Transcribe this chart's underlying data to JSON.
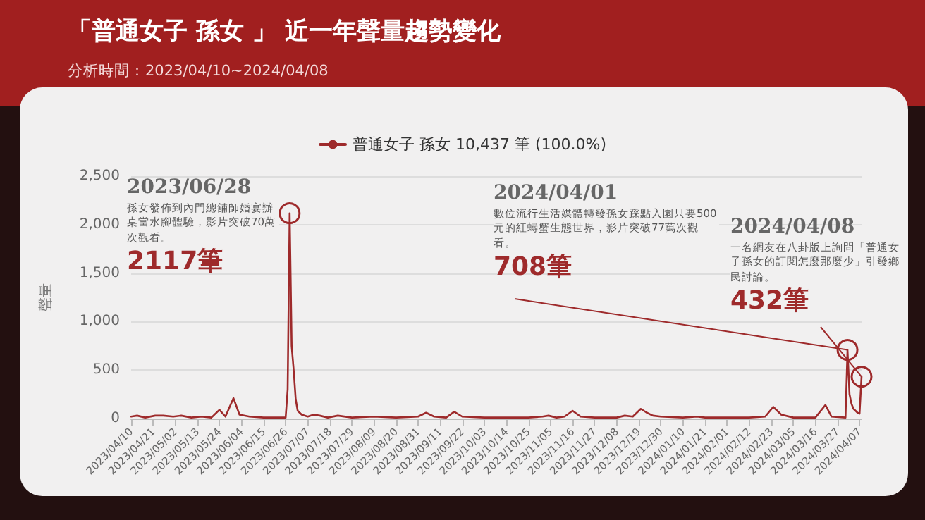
{
  "chart_data": {
    "type": "line",
    "title": "「普通女子 孫女 」 近一年聲量趨勢變化",
    "subtitle": "分析時間：2023/04/10~2024/04/08",
    "ylabel": "聲量",
    "x": [
      "2023-04-10",
      "2023-04-13",
      "2023-04-17",
      "2023-04-22",
      "2023-04-26",
      "2023-05-01",
      "2023-05-05",
      "2023-05-10",
      "2023-05-15",
      "2023-05-20",
      "2023-05-24",
      "2023-05-27",
      "2023-05-31",
      "2023-06-03",
      "2023-06-08",
      "2023-06-15",
      "2023-06-22",
      "2023-06-26",
      "2023-06-27",
      "2023-06-28",
      "2023-06-29",
      "2023-06-30",
      "2023-07-01",
      "2023-07-02",
      "2023-07-04",
      "2023-07-07",
      "2023-07-10",
      "2023-07-13",
      "2023-07-17",
      "2023-07-22",
      "2023-07-29",
      "2023-08-09",
      "2023-08-20",
      "2023-08-31",
      "2023-09-04",
      "2023-09-08",
      "2023-09-14",
      "2023-09-18",
      "2023-09-22",
      "2023-10-03",
      "2023-10-14",
      "2023-10-25",
      "2023-11-01",
      "2023-11-04",
      "2023-11-08",
      "2023-11-12",
      "2023-11-16",
      "2023-11-20",
      "2023-11-27",
      "2023-12-08",
      "2023-12-12",
      "2023-12-16",
      "2023-12-20",
      "2023-12-23",
      "2023-12-26",
      "2023-12-30",
      "2024-01-10",
      "2024-01-17",
      "2024-01-21",
      "2024-02-01",
      "2024-02-12",
      "2024-02-20",
      "2024-02-24",
      "2024-02-28",
      "2024-03-05",
      "2024-03-16",
      "2024-03-21",
      "2024-03-24",
      "2024-03-31",
      "2024-04-01",
      "2024-04-02",
      "2024-04-03",
      "2024-04-04",
      "2024-04-05",
      "2024-04-06",
      "2024-04-07",
      "2024-04-08"
    ],
    "series": [
      {
        "name": "普通女子 孫女 10,437 筆 (100.0%)",
        "color": "#9e2a2b",
        "values": [
          20,
          30,
          10,
          30,
          30,
          20,
          30,
          10,
          20,
          10,
          90,
          20,
          210,
          40,
          20,
          10,
          10,
          10,
          300,
          2117,
          750,
          500,
          200,
          80,
          40,
          20,
          40,
          30,
          10,
          30,
          10,
          20,
          10,
          20,
          60,
          20,
          10,
          70,
          20,
          10,
          10,
          10,
          20,
          30,
          10,
          20,
          80,
          20,
          10,
          10,
          30,
          20,
          100,
          60,
          30,
          20,
          10,
          20,
          10,
          10,
          10,
          20,
          120,
          40,
          10,
          10,
          140,
          20,
          10,
          708,
          250,
          150,
          100,
          80,
          60,
          50,
          432
        ]
      }
    ],
    "xlim": [
      "2023-04-10",
      "2024-04-08"
    ],
    "xticks": [
      {
        "value": "2023-04-10",
        "label": "2023/04/10"
      },
      {
        "value": "2023-04-21",
        "label": "2023/04/21"
      },
      {
        "value": "2023-05-02",
        "label": "2023/05/02"
      },
      {
        "value": "2023-05-13",
        "label": "2023/05/13"
      },
      {
        "value": "2023-05-24",
        "label": "2023/05/24"
      },
      {
        "value": "2023-06-04",
        "label": "2023/06/04"
      },
      {
        "value": "2023-06-15",
        "label": "2023/06/15"
      },
      {
        "value": "2023-06-26",
        "label": "2023/06/26"
      },
      {
        "value": "2023-07-07",
        "label": "2023/07/07"
      },
      {
        "value": "2023-07-18",
        "label": "2023/07/18"
      },
      {
        "value": "2023-07-29",
        "label": "2023/07/29"
      },
      {
        "value": "2023-08-09",
        "label": "2023/08/09"
      },
      {
        "value": "2023-08-20",
        "label": "2023/08/20"
      },
      {
        "value": "2023-08-31",
        "label": "2023/08/31"
      },
      {
        "value": "2023-09-11",
        "label": "2023/09/11"
      },
      {
        "value": "2023-09-22",
        "label": "2023/09/22"
      },
      {
        "value": "2023-10-03",
        "label": "2023/10/03"
      },
      {
        "value": "2023-10-14",
        "label": "2023/10/14"
      },
      {
        "value": "2023-10-25",
        "label": "2023/10/25"
      },
      {
        "value": "2023-11-05",
        "label": "2023/11/05"
      },
      {
        "value": "2023-11-16",
        "label": "2023/11/16"
      },
      {
        "value": "2023-11-27",
        "label": "2023/11/27"
      },
      {
        "value": "2023-12-08",
        "label": "2023/12/08"
      },
      {
        "value": "2023-12-19",
        "label": "2023/12/19"
      },
      {
        "value": "2023-12-30",
        "label": "2023/12/30"
      },
      {
        "value": "2024-01-10",
        "label": "2024/01/10"
      },
      {
        "value": "2024-01-21",
        "label": "2024/01/21"
      },
      {
        "value": "2024-02-01",
        "label": "2024/02/01"
      },
      {
        "value": "2024-02-12",
        "label": "2024/02/12"
      },
      {
        "value": "2024-02-23",
        "label": "2024/02/23"
      },
      {
        "value": "2024-03-05",
        "label": "2024/03/05"
      },
      {
        "value": "2024-03-16",
        "label": "2024/03/16"
      },
      {
        "value": "2024-03-27",
        "label": "2024/03/27"
      },
      {
        "value": "2024-04-07",
        "label": "2024/04/07"
      }
    ],
    "ylim": [
      0,
      2500
    ],
    "yticks": [
      {
        "value": 0,
        "label": "0"
      },
      {
        "value": 500,
        "label": "500"
      },
      {
        "value": 1000,
        "label": "1,000"
      },
      {
        "value": 1500,
        "label": "1,500"
      },
      {
        "value": 2000,
        "label": "2,000"
      },
      {
        "value": 2500,
        "label": "2,500"
      }
    ],
    "grid": "y",
    "legend": "top",
    "marker": "none",
    "line_style": "solid",
    "annotations": [
      {
        "text": "2023/06/28\n孫女發佈到內門總舖師婚宴辦桌當水腳體驗，影片突破70萬次觀看。\n2117筆",
        "x": "2023-06-28",
        "y": 2117
      },
      {
        "text": "2024/04/01\n數位流行生活媒體轉發孫女踩點入園只要500元的紅蟳蟹生態世界，影片突破77萬次觀看。\n708筆",
        "x": "2024-04-01",
        "y": 708
      },
      {
        "text": "2024/04/08\n一名網友在八卦版上詢問「普通女子孫女的訂閱怎麼那麼少」引發鄉民討論。\n432筆",
        "x": "2024-04-08",
        "y": 432
      }
    ]
  }
}
